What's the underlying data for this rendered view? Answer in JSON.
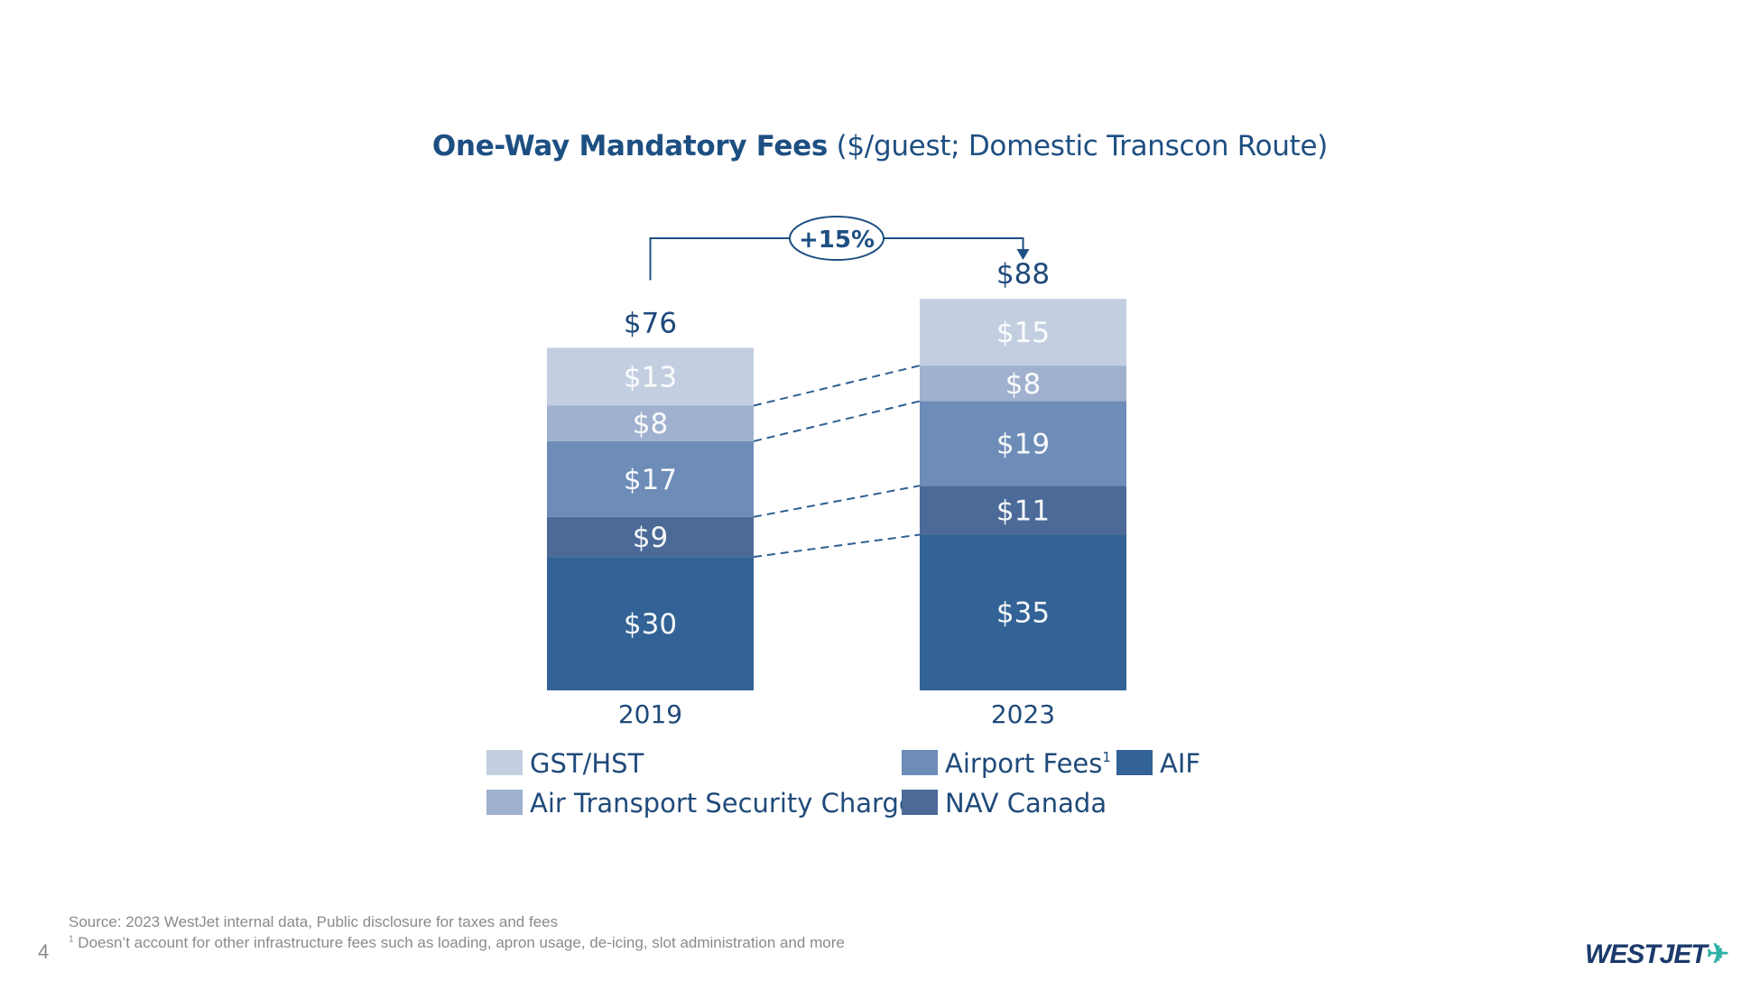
{
  "chart_data": {
    "type": "bar",
    "stacked": true,
    "title": "One-Way Mandatory Fees",
    "subtitle": "($/guest; Domestic Transcon Route)",
    "categories": [
      "2019",
      "2023"
    ],
    "series": [
      {
        "name": "AIF",
        "values": [
          30,
          35
        ],
        "labels": [
          "$30",
          "$35"
        ],
        "color": "#336396"
      },
      {
        "name": "NAV Canada",
        "values": [
          9,
          11
        ],
        "labels": [
          "$9",
          "$11"
        ],
        "color": "#4b6a98"
      },
      {
        "name": "Airport Fees",
        "superscript": "1",
        "values": [
          17,
          19
        ],
        "labels": [
          "$17",
          "$19"
        ],
        "color": "#6d8cb8"
      },
      {
        "name": "Air Transport Security Charge",
        "values": [
          8,
          8
        ],
        "labels": [
          "$8",
          "$8"
        ],
        "color": "#9fb1cf"
      },
      {
        "name": "GST/HST",
        "values": [
          13,
          15
        ],
        "labels": [
          "$13",
          "$15"
        ],
        "color": "#c3cfe1"
      }
    ],
    "totals": [
      "$76",
      "$88"
    ],
    "change_annotation": "+15%",
    "legend_placement": "bottom",
    "xlabel": "",
    "ylabel": "",
    "grid": false
  },
  "footer": {
    "source": "Source: 2023 WestJet internal data, Public disclosure for taxes and fees",
    "footnote_marker": "1",
    "footnote": "Doesn’t account for other infrastructure fees such as loading, apron usage, de-icing, slot administration and more",
    "page_number": "4"
  },
  "logo": {
    "text": "WESTJET"
  },
  "colors": {
    "title": "#1d4f82",
    "text": "#1f4a7a"
  }
}
